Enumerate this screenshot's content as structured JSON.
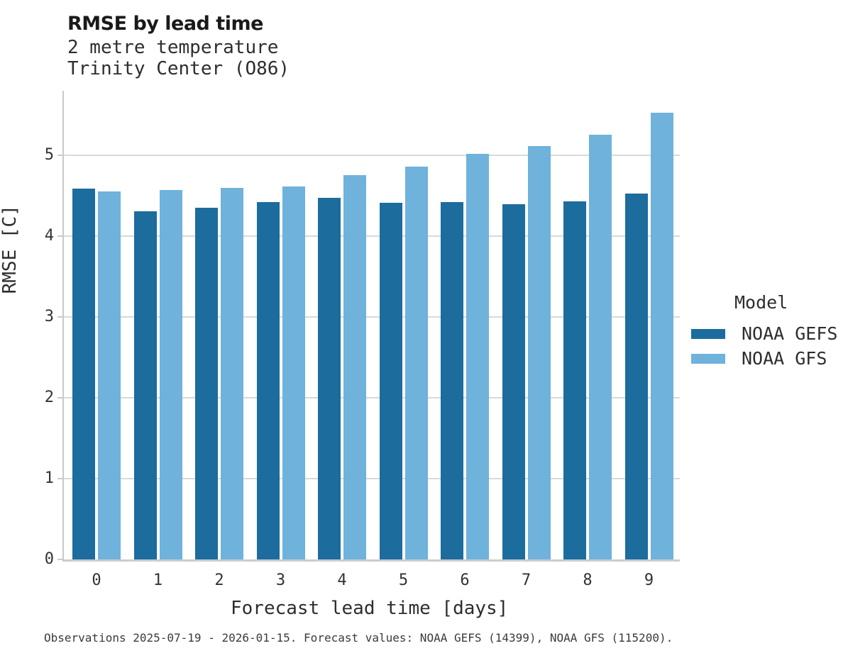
{
  "title": "RMSE by lead time",
  "subtitle_line1": "2 metre temperature",
  "subtitle_line2": "Trinity Center (O86)",
  "footer": "Observations 2025-07-19 - 2026-01-15. Forecast values: NOAA GEFS (14399), NOAA GFS (115200).",
  "colors": {
    "gefs_dark_blue": "#1C6C9E",
    "gfs_light_blue": "#6FB2DC",
    "gridline_gray": "#d9d9d9"
  },
  "legend": {
    "title": "Model",
    "entries": [
      {
        "label": "NOAA GEFS",
        "color": "#1C6C9E"
      },
      {
        "label": "NOAA GFS",
        "color": "#6FB2DC"
      }
    ]
  },
  "chart_data": {
    "type": "bar",
    "title": "RMSE by lead time",
    "subtitle": [
      "2 metre temperature",
      "Trinity Center (O86)"
    ],
    "categories": [
      "0",
      "1",
      "2",
      "3",
      "4",
      "5",
      "6",
      "7",
      "8",
      "9"
    ],
    "series": [
      {
        "name": "NOAA GEFS",
        "color": "#1C6C9E",
        "values": [
          4.58,
          4.3,
          4.35,
          4.42,
          4.47,
          4.41,
          4.42,
          4.39,
          4.43,
          4.52
        ]
      },
      {
        "name": "NOAA GFS",
        "color": "#6FB2DC",
        "values": [
          4.55,
          4.57,
          4.59,
          4.61,
          4.75,
          4.86,
          5.01,
          5.11,
          5.25,
          5.52
        ]
      }
    ],
    "xlabel": "Forecast lead time [days]",
    "ylabel": "RMSE [C]",
    "ylim": [
      0,
      5.82
    ],
    "yticks": [
      0,
      1,
      2,
      3,
      4,
      5
    ],
    "grid": true,
    "legend_position": "right",
    "legend_title": "Model"
  }
}
